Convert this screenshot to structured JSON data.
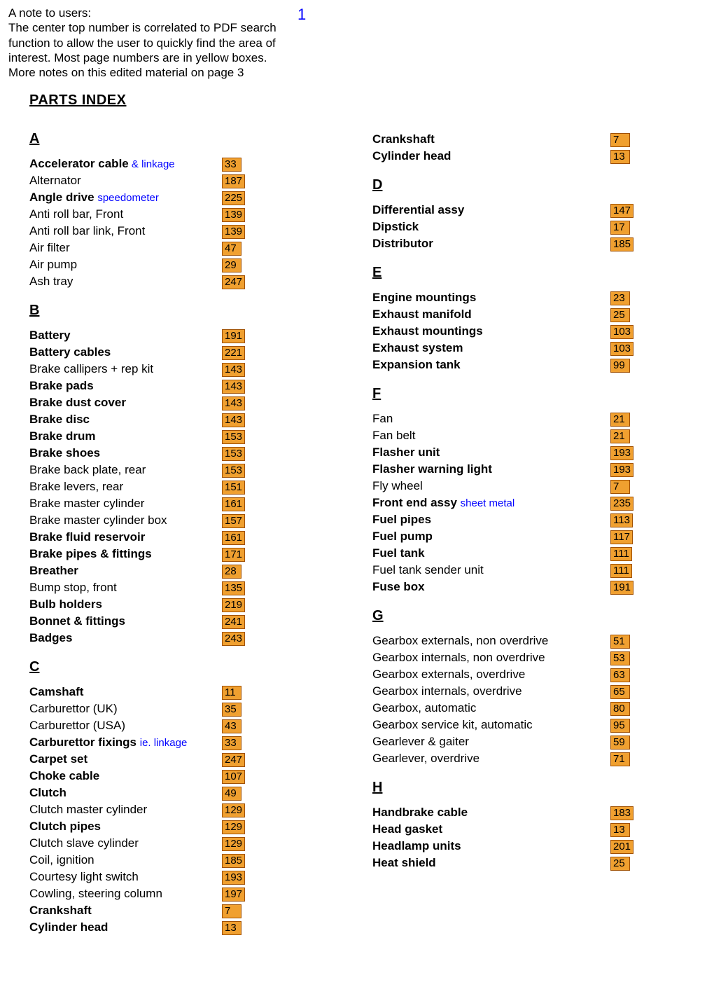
{
  "page_number": "1",
  "note": {
    "line1": "A note to users:",
    "line2": "The center top number is correlated to PDF search",
    "line3": "function to allow the user to quickly find the area of",
    "line4": "interest.  Most page numbers are in yellow boxes.",
    "line5": "More notes on this edited material on page 3"
  },
  "title": "PARTS INDEX",
  "colors": {
    "page_box_bg": "#f0a030",
    "page_box_border": "#a05000",
    "sub_text": "#0000ff",
    "page_number_color": "#0000ff",
    "background": "#ffffff",
    "text": "#000000"
  },
  "left_sections": [
    {
      "letter": "A",
      "items": [
        {
          "label": "Accelerator cable",
          "sub": " & linkage",
          "bold": true,
          "page": "33"
        },
        {
          "label": "Alternator",
          "bold": false,
          "page": "187"
        },
        {
          "label": "Angle drive ",
          "sub": "speedometer",
          "bold": true,
          "page": "225"
        },
        {
          "label": "Anti roll bar, Front",
          "bold": false,
          "page": "139"
        },
        {
          "label": "Anti roll bar link, Front",
          "bold": false,
          "page": "139"
        },
        {
          "label": "Air filter",
          "bold": false,
          "page": "47"
        },
        {
          "label": "Air pump",
          "bold": false,
          "page": "29"
        },
        {
          "label": "Ash tray",
          "bold": false,
          "page": "247"
        }
      ]
    },
    {
      "letter": "B",
      "items": [
        {
          "label": "Battery",
          "bold": true,
          "page": "191"
        },
        {
          "label": "Battery cables",
          "bold": true,
          "page": "221"
        },
        {
          "label": "Brake callipers + rep kit",
          "bold": false,
          "page": "143"
        },
        {
          "label": "Brake pads",
          "bold": true,
          "page": "143"
        },
        {
          "label": "Brake dust cover",
          "bold": true,
          "page": "143"
        },
        {
          "label": "Brake disc",
          "bold": true,
          "page": "143"
        },
        {
          "label": "Brake drum",
          "bold": true,
          "page": "153"
        },
        {
          "label": "Brake shoes",
          "bold": true,
          "page": "153"
        },
        {
          "label": "Brake back plate, rear",
          "bold": false,
          "page": "153"
        },
        {
          "label": "Brake levers, rear",
          "bold": false,
          "page": "151"
        },
        {
          "label": "Brake master cylinder",
          "bold": false,
          "page": "161"
        },
        {
          "label": "Brake master cylinder box",
          "bold": false,
          "page": "157"
        },
        {
          "label": "Brake fluid reservoir",
          "bold": true,
          "page": "161"
        },
        {
          "label": "Brake pipes & fittings",
          "bold": true,
          "page": "171"
        },
        {
          "label": "Breather",
          "bold": true,
          "page": "28"
        },
        {
          "label": "Bump stop, front",
          "bold": false,
          "page": "135"
        },
        {
          "label": "Bulb holders",
          "bold": true,
          "page": "219"
        },
        {
          "label": "Bonnet & fittings",
          "bold": true,
          "page": "241"
        },
        {
          "label": "Badges",
          "bold": true,
          "page": "243"
        }
      ]
    },
    {
      "letter": "C",
      "items": [
        {
          "label": "Camshaft",
          "bold": true,
          "page": "11"
        },
        {
          "label": "Carburettor (UK)",
          "bold": false,
          "page": "35"
        },
        {
          "label": "Carburettor (USA)",
          "bold": false,
          "page": "43"
        },
        {
          "label": "Carburettor fixings ",
          "sub": "ie. linkage",
          "bold": true,
          "page": "33"
        },
        {
          "label": "Carpet set",
          "bold": true,
          "page": "247"
        },
        {
          "label": "Choke cable",
          "bold": true,
          "page": "107"
        },
        {
          "label": "Clutch",
          "bold": true,
          "page": "49"
        },
        {
          "label": "Clutch master cylinder",
          "bold": false,
          "page": "129"
        },
        {
          "label": "Clutch pipes",
          "bold": true,
          "page": "129"
        },
        {
          "label": "Clutch slave cylinder",
          "bold": false,
          "page": "129"
        },
        {
          "label": "Coil, ignition",
          "bold": false,
          "page": "185"
        },
        {
          "label": "Courtesy light switch",
          "bold": false,
          "page": "193"
        },
        {
          "label": "Cowling, steering column",
          "bold": false,
          "page": "197"
        },
        {
          "label": "Crankshaft",
          "bold": true,
          "page": "7"
        },
        {
          "label": "Cylinder head",
          "bold": true,
          "page": "13"
        }
      ]
    }
  ],
  "right_sections": [
    {
      "letter": "",
      "items": [
        {
          "label": "Crankshaft",
          "bold": true,
          "page": "7"
        },
        {
          "label": "Cylinder head",
          "bold": true,
          "page": "13"
        }
      ]
    },
    {
      "letter": "D",
      "items": [
        {
          "label": "Differential assy",
          "bold": true,
          "page": "147"
        },
        {
          "label": "Dipstick",
          "bold": true,
          "page": "17"
        },
        {
          "label": "Distributor",
          "bold": true,
          "page": "185"
        }
      ]
    },
    {
      "letter": "E",
      "items": [
        {
          "label": "Engine mountings",
          "bold": true,
          "page": "23"
        },
        {
          "label": "Exhaust manifold",
          "bold": true,
          "page": "25"
        },
        {
          "label": "Exhaust mountings",
          "bold": true,
          "page": "103"
        },
        {
          "label": "Exhaust system",
          "bold": true,
          "page": "103"
        },
        {
          "label": "Expansion tank",
          "bold": true,
          "page": "99"
        }
      ]
    },
    {
      "letter": "F",
      "items": [
        {
          "label": "Fan",
          "bold": false,
          "page": "21"
        },
        {
          "label": "Fan belt",
          "bold": false,
          "page": "21"
        },
        {
          "label": "Flasher unit",
          "bold": true,
          "page": "193"
        },
        {
          "label": "Flasher warning light",
          "bold": true,
          "page": "193"
        },
        {
          "label": "Fly wheel",
          "bold": false,
          "page": "7"
        },
        {
          "label": "Front end assy  ",
          "sub": "sheet metal",
          "bold": true,
          "page": "235"
        },
        {
          "label": "Fuel pipes",
          "bold": true,
          "page": "113"
        },
        {
          "label": "Fuel pump",
          "bold": true,
          "page": "117"
        },
        {
          "label": "Fuel tank",
          "bold": true,
          "page": "111"
        },
        {
          "label": "Fuel tank sender unit",
          "bold": false,
          "page": "111"
        },
        {
          "label": "Fuse box",
          "bold": true,
          "page": "191"
        }
      ]
    },
    {
      "letter": "G",
      "items": [
        {
          "label": "Gearbox externals, non overdrive",
          "bold": false,
          "page": "51"
        },
        {
          "label": "Gearbox internals, non overdrive",
          "bold": false,
          "page": "53"
        },
        {
          "label": "Gearbox externals, overdrive",
          "bold": false,
          "page": "63"
        },
        {
          "label": "Gearbox internals, overdrive",
          "bold": false,
          "page": "65"
        },
        {
          "label": "Gearbox, automatic",
          "bold": false,
          "page": "80"
        },
        {
          "label": "Gearbox service kit, automatic",
          "bold": false,
          "page": "95"
        },
        {
          "label": "Gearlever & gaiter",
          "bold": false,
          "page": "59"
        },
        {
          "label": "Gearlever, overdrive",
          "bold": false,
          "page": "71"
        }
      ]
    },
    {
      "letter": "H",
      "items": [
        {
          "label": "Handbrake cable",
          "bold": true,
          "page": "183"
        },
        {
          "label": "Head gasket",
          "bold": true,
          "page": "13"
        },
        {
          "label": "Headlamp units",
          "bold": true,
          "page": "201"
        },
        {
          "label": "Heat shield",
          "bold": true,
          "page": "25"
        }
      ]
    }
  ]
}
